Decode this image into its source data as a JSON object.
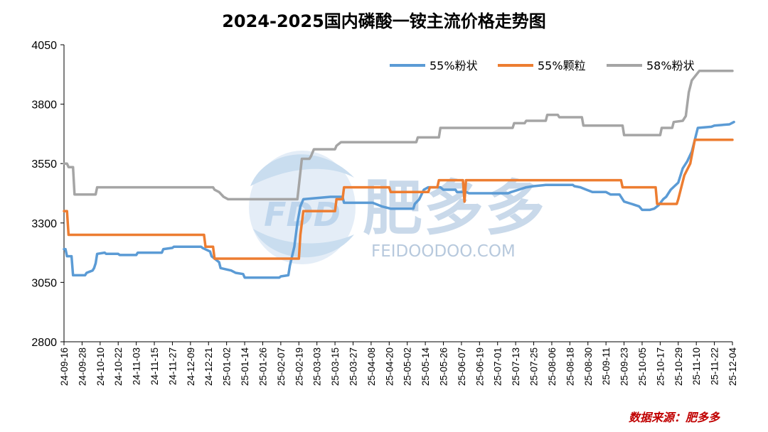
{
  "chart_data": {
    "type": "line",
    "title": "2024-2025国内磷酸一铵主流价格走势图",
    "source": "数据来源：肥多多",
    "watermark": {
      "logo": "FDD",
      "brand": "肥多多",
      "site": "FEIDOODOO.COM"
    },
    "ylim": [
      2800,
      4050
    ],
    "yticks": [
      2800,
      3050,
      3300,
      3550,
      3800,
      4050
    ],
    "x_dates": [
      "24-09-16",
      "24-09-28",
      "24-10-10",
      "24-10-22",
      "24-11-03",
      "24-11-15",
      "24-11-27",
      "24-12-09",
      "24-12-21",
      "25-01-02",
      "25-01-14",
      "25-01-26",
      "25-02-07",
      "25-02-19",
      "25-03-03",
      "25-03-15",
      "25-03-27",
      "25-04-08",
      "25-04-20",
      "25-05-02",
      "25-05-14",
      "25-05-26",
      "25-06-07",
      "25-06-19",
      "25-07-01",
      "25-07-13",
      "25-07-25",
      "25-08-06",
      "25-08-18",
      "25-08-30",
      "25-09-11",
      "25-09-23",
      "25-10-05",
      "25-10-17",
      "25-10-29",
      "25-11-10",
      "25-11-22",
      "25-12-04"
    ],
    "legend_position": "top-right",
    "grid": false,
    "colors": {
      "55%粉状": "#5b9bd5",
      "55%颗粒": "#ed7d31",
      "58%粉状": "#a5a5a5"
    },
    "series": [
      {
        "name": "55%粉状",
        "color": "#5b9bd5",
        "points": [
          [
            "24-09-16",
            3190
          ],
          [
            "24-09-17",
            3190
          ],
          [
            "24-09-18",
            3160
          ],
          [
            "24-09-21",
            3160
          ],
          [
            "24-09-22",
            3080
          ],
          [
            "24-09-30",
            3080
          ],
          [
            "24-10-01",
            3090
          ],
          [
            "24-10-05",
            3100
          ],
          [
            "24-10-06",
            3110
          ],
          [
            "24-10-07",
            3130
          ],
          [
            "24-10-08",
            3170
          ],
          [
            "24-10-13",
            3175
          ],
          [
            "24-10-14",
            3170
          ],
          [
            "24-10-22",
            3170
          ],
          [
            "24-10-23",
            3165
          ],
          [
            "24-11-03",
            3165
          ],
          [
            "24-11-04",
            3175
          ],
          [
            "24-11-20",
            3175
          ],
          [
            "24-11-21",
            3190
          ],
          [
            "24-11-27",
            3195
          ],
          [
            "24-11-28",
            3200
          ],
          [
            "24-12-16",
            3200
          ],
          [
            "24-12-17",
            3195
          ],
          [
            "24-12-22",
            3180
          ],
          [
            "24-12-23",
            3160
          ],
          [
            "24-12-24",
            3155
          ],
          [
            "24-12-28",
            3135
          ],
          [
            "24-12-29",
            3110
          ],
          [
            "25-01-05",
            3100
          ],
          [
            "25-01-08",
            3090
          ],
          [
            "25-01-13",
            3085
          ],
          [
            "25-01-14",
            3070
          ],
          [
            "25-02-06",
            3070
          ],
          [
            "25-02-07",
            3075
          ],
          [
            "25-02-12",
            3080
          ],
          [
            "25-02-13",
            3120
          ],
          [
            "25-02-16",
            3200
          ],
          [
            "25-02-18",
            3300
          ],
          [
            "25-02-20",
            3370
          ],
          [
            "25-02-22",
            3400
          ],
          [
            "25-03-12",
            3410
          ],
          [
            "25-03-20",
            3410
          ],
          [
            "25-03-21",
            3385
          ],
          [
            "25-04-09",
            3385
          ],
          [
            "25-04-11",
            3380
          ],
          [
            "25-04-15",
            3370
          ],
          [
            "25-04-18",
            3365
          ],
          [
            "25-04-21",
            3360
          ],
          [
            "25-05-06",
            3360
          ],
          [
            "25-05-07",
            3380
          ],
          [
            "25-05-10",
            3400
          ],
          [
            "25-05-13",
            3440
          ],
          [
            "25-05-16",
            3450
          ],
          [
            "25-05-24",
            3450
          ],
          [
            "25-05-26",
            3440
          ],
          [
            "25-06-03",
            3440
          ],
          [
            "25-06-04",
            3430
          ],
          [
            "25-06-10",
            3430
          ],
          [
            "25-06-12",
            3425
          ],
          [
            "25-07-08",
            3425
          ],
          [
            "25-07-10",
            3430
          ],
          [
            "25-07-15",
            3440
          ],
          [
            "25-07-20",
            3450
          ],
          [
            "25-07-25",
            3455
          ],
          [
            "25-08-02",
            3460
          ],
          [
            "25-08-20",
            3460
          ],
          [
            "25-08-21",
            3455
          ],
          [
            "25-08-25",
            3450
          ],
          [
            "25-08-29",
            3440
          ],
          [
            "25-09-02",
            3430
          ],
          [
            "25-09-11",
            3430
          ],
          [
            "25-09-14",
            3420
          ],
          [
            "25-09-20",
            3420
          ],
          [
            "25-09-23",
            3390
          ],
          [
            "25-09-28",
            3380
          ],
          [
            "25-10-03",
            3370
          ],
          [
            "25-10-05",
            3355
          ],
          [
            "25-10-10",
            3355
          ],
          [
            "25-10-13",
            3360
          ],
          [
            "25-10-16",
            3375
          ],
          [
            "25-10-19",
            3400
          ],
          [
            "25-10-21",
            3410
          ],
          [
            "25-10-24",
            3440
          ],
          [
            "25-10-29",
            3470
          ],
          [
            "25-11-01",
            3530
          ],
          [
            "25-11-04",
            3560
          ],
          [
            "25-11-07",
            3600
          ],
          [
            "25-11-09",
            3650
          ],
          [
            "25-11-11",
            3700
          ],
          [
            "25-11-20",
            3705
          ],
          [
            "25-11-22",
            3710
          ],
          [
            "25-12-02",
            3715
          ],
          [
            "25-12-05",
            3725
          ]
        ]
      },
      {
        "name": "55%颗粒",
        "color": "#ed7d31",
        "points": [
          [
            "24-09-16",
            3350
          ],
          [
            "24-09-18",
            3350
          ],
          [
            "24-09-19",
            3250
          ],
          [
            "24-12-18",
            3250
          ],
          [
            "24-12-19",
            3200
          ],
          [
            "24-12-24",
            3200
          ],
          [
            "24-12-25",
            3150
          ],
          [
            "25-02-19",
            3150
          ],
          [
            "25-02-20",
            3250
          ],
          [
            "25-02-22",
            3350
          ],
          [
            "25-03-15",
            3350
          ],
          [
            "25-03-16",
            3400
          ],
          [
            "25-03-20",
            3400
          ],
          [
            "25-03-21",
            3450
          ],
          [
            "25-04-20",
            3450
          ],
          [
            "25-04-21",
            3430
          ],
          [
            "25-05-16",
            3430
          ],
          [
            "25-05-17",
            3450
          ],
          [
            "25-05-22",
            3450
          ],
          [
            "25-05-23",
            3480
          ],
          [
            "25-06-08",
            3480
          ],
          [
            "25-06-09",
            3390
          ],
          [
            "25-06-10",
            3480
          ],
          [
            "25-09-21",
            3480
          ],
          [
            "25-09-22",
            3450
          ],
          [
            "25-10-14",
            3450
          ],
          [
            "25-10-15",
            3380
          ],
          [
            "25-10-28",
            3380
          ],
          [
            "25-10-29",
            3400
          ],
          [
            "25-11-02",
            3500
          ],
          [
            "25-11-06",
            3550
          ],
          [
            "25-11-09",
            3650
          ],
          [
            "25-12-04",
            3650
          ]
        ]
      },
      {
        "name": "58%粉状",
        "color": "#a5a5a5",
        "points": [
          [
            "24-09-16",
            3550
          ],
          [
            "24-09-18",
            3550
          ],
          [
            "24-09-19",
            3535
          ],
          [
            "24-09-22",
            3535
          ],
          [
            "24-09-23",
            3420
          ],
          [
            "24-10-07",
            3420
          ],
          [
            "24-10-08",
            3450
          ],
          [
            "24-12-24",
            3450
          ],
          [
            "24-12-25",
            3440
          ],
          [
            "24-12-28",
            3430
          ],
          [
            "24-12-31",
            3410
          ],
          [
            "25-01-03",
            3400
          ],
          [
            "25-02-18",
            3400
          ],
          [
            "25-02-21",
            3570
          ],
          [
            "25-02-26",
            3570
          ],
          [
            "25-02-27",
            3580
          ],
          [
            "25-03-01",
            3610
          ],
          [
            "25-03-15",
            3610
          ],
          [
            "25-03-16",
            3625
          ],
          [
            "25-03-19",
            3640
          ],
          [
            "25-05-08",
            3640
          ],
          [
            "25-05-09",
            3660
          ],
          [
            "25-05-23",
            3660
          ],
          [
            "25-05-24",
            3700
          ],
          [
            "25-07-11",
            3700
          ],
          [
            "25-07-12",
            3720
          ],
          [
            "25-07-19",
            3720
          ],
          [
            "25-07-20",
            3730
          ],
          [
            "25-08-02",
            3730
          ],
          [
            "25-08-03",
            3755
          ],
          [
            "25-08-10",
            3755
          ],
          [
            "25-08-11",
            3745
          ],
          [
            "25-08-26",
            3745
          ],
          [
            "25-08-27",
            3710
          ],
          [
            "25-09-22",
            3710
          ],
          [
            "25-09-23",
            3670
          ],
          [
            "25-10-17",
            3670
          ],
          [
            "25-10-18",
            3700
          ],
          [
            "25-10-25",
            3700
          ],
          [
            "25-10-26",
            3725
          ],
          [
            "25-11-01",
            3730
          ],
          [
            "25-11-03",
            3750
          ],
          [
            "25-11-05",
            3850
          ],
          [
            "25-11-07",
            3900
          ],
          [
            "25-11-12",
            3940
          ],
          [
            "25-12-04",
            3940
          ]
        ]
      }
    ]
  }
}
